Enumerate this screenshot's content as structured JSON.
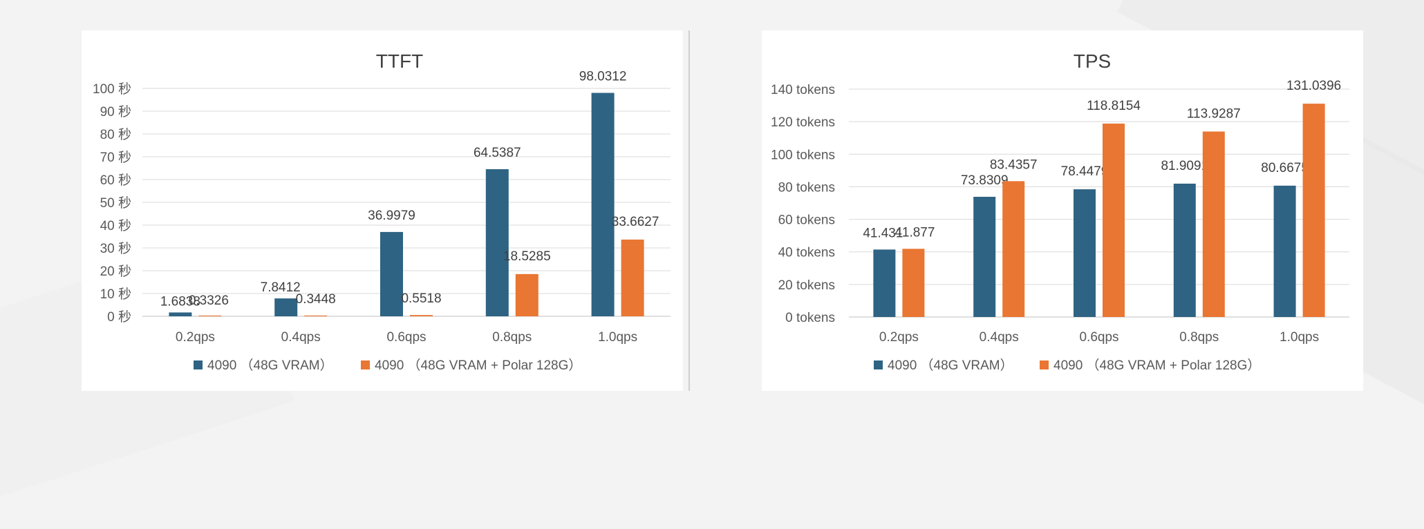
{
  "chart_data": [
    {
      "type": "bar",
      "title": "TTFT",
      "categories": [
        "0.2qps",
        "0.4qps",
        "0.6qps",
        "0.8qps",
        "1.0qps"
      ],
      "y_ticks": [
        "0 秒",
        "10 秒",
        "20 秒",
        "30 秒",
        "40 秒",
        "50 秒",
        "60 秒",
        "70 秒",
        "80 秒",
        "90 秒",
        "100 秒"
      ],
      "ylim": [
        0,
        100
      ],
      "grid": true,
      "legend_position": "bottom",
      "series": [
        {
          "name": "4090 （48G VRAM）",
          "color": "#2e6383",
          "values": [
            1.6838,
            7.8412,
            36.9979,
            64.5387,
            98.0312
          ],
          "labels": [
            "1.6838",
            "7.8412",
            "36.9979",
            "64.5387",
            "98.0312"
          ]
        },
        {
          "name": "4090 （48G VRAM + Polar 128G）",
          "color": "#e97632",
          "values": [
            0.3326,
            0.3448,
            0.5518,
            18.5285,
            33.6627
          ],
          "labels": [
            "0.3326",
            "0.3448",
            "0.5518",
            "18.5285",
            "33.6627"
          ]
        }
      ]
    },
    {
      "type": "bar",
      "title": "TPS",
      "categories": [
        "0.2qps",
        "0.4qps",
        "0.6qps",
        "0.8qps",
        "1.0qps"
      ],
      "y_ticks": [
        "0 tokens",
        "20 tokens",
        "40 tokens",
        "60 tokens",
        "80 tokens",
        "100 tokens",
        "120 tokens",
        "140 tokens"
      ],
      "ylim": [
        0,
        140
      ],
      "grid": true,
      "legend_position": "bottom",
      "series": [
        {
          "name": "4090 （48G VRAM）",
          "color": "#2e6383",
          "values": [
            41.431,
            73.8309,
            78.4479,
            81.9091,
            80.6675
          ],
          "labels": [
            "41.431",
            "73.8309",
            "78.4479",
            "81.9091",
            "80.6675"
          ]
        },
        {
          "name": "4090 （48G VRAM + Polar 128G）",
          "color": "#e97632",
          "values": [
            41.877,
            83.4357,
            118.8154,
            113.9287,
            131.0396
          ],
          "labels": [
            "41.877",
            "83.4357",
            "118.8154",
            "113.9287",
            "131.0396"
          ]
        }
      ]
    }
  ]
}
